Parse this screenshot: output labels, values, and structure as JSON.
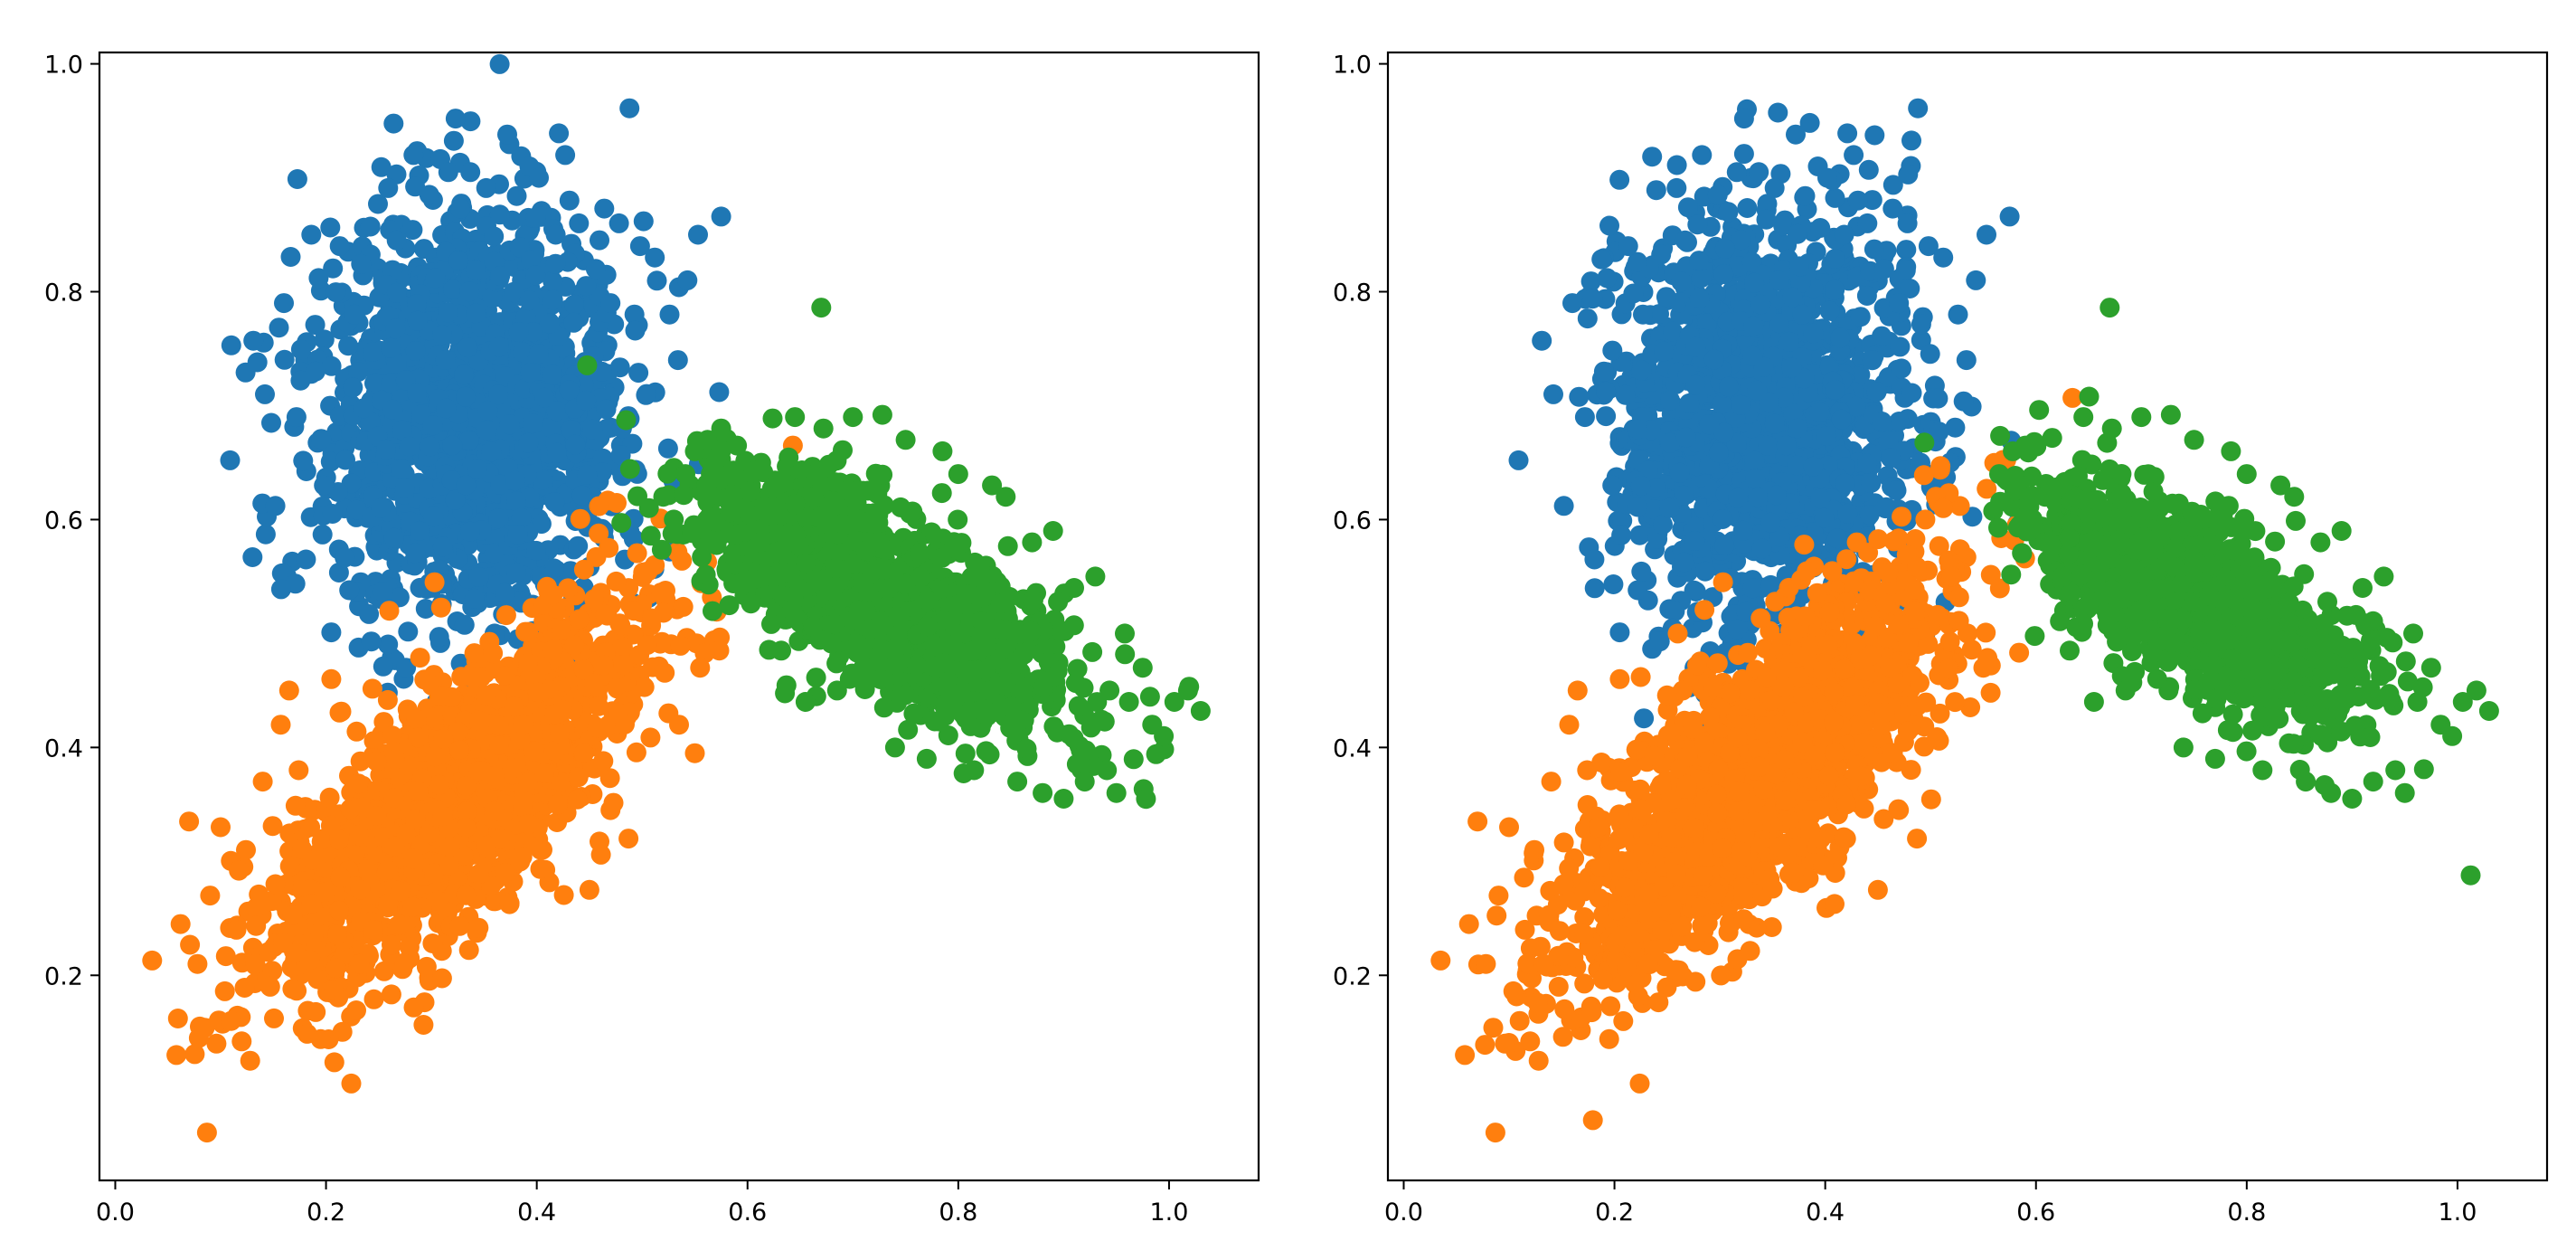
{
  "chart_data": [
    {
      "type": "scatter",
      "panel": "left",
      "title": "",
      "xlabel": "",
      "ylabel": "",
      "xlim": [
        -0.015,
        1.085
      ],
      "ylim": [
        0.02,
        1.01
      ],
      "x_ticks": [
        0.0,
        0.2,
        0.4,
        0.6,
        0.8,
        1.0
      ],
      "x_tick_labels": [
        "0.0",
        "0.2",
        "0.4",
        "0.6",
        "0.8",
        "1.0"
      ],
      "y_ticks": [
        0.2,
        0.4,
        0.6,
        0.8,
        1.0
      ],
      "y_tick_labels": [
        "0.2",
        "0.4",
        "0.6",
        "0.8",
        "1.0"
      ],
      "grid": false,
      "legend": "none",
      "series": [
        {
          "color": "#1f77b4",
          "cluster": {
            "mean": [
              0.34,
              0.69
            ],
            "sd": [
              0.07,
              0.085
            ],
            "corr": 0.0,
            "n": 1600
          },
          "x": [
            0.109,
            0.131,
            0.142,
            0.152,
            0.16,
            0.172,
            0.181,
            0.19,
            0.193,
            0.198,
            0.205,
            0.213,
            0.222,
            0.227,
            0.243,
            0.252,
            0.259,
            0.267,
            0.276,
            0.283,
            0.298,
            0.305,
            0.316,
            0.323,
            0.335,
            0.337,
            0.352,
            0.36,
            0.372,
            0.381,
            0.393,
            0.402,
            0.405,
            0.418,
            0.421,
            0.427,
            0.431,
            0.44,
            0.45,
            0.456,
            0.464,
            0.47,
            0.478,
            0.488,
            0.498,
            0.512,
            0.526,
            0.534,
            0.543,
            0.553,
            0.575
          ],
          "y": [
            0.652,
            0.757,
            0.71,
            0.612,
            0.79,
            0.69,
            0.565,
            0.73,
            0.812,
            0.63,
            0.501,
            0.84,
            0.538,
            0.78,
            0.493,
            0.61,
            0.891,
            0.845,
            0.47,
            0.92,
            0.885,
            0.44,
            0.905,
            0.952,
            0.45,
            0.905,
            0.891,
            0.5,
            0.938,
            0.884,
            0.91,
            0.9,
            0.43,
            0.85,
            0.939,
            0.92,
            0.88,
            0.86,
            0.45,
            0.82,
            0.873,
            0.79,
            0.86,
            0.961,
            0.84,
            0.83,
            0.78,
            0.74,
            0.81,
            0.85,
            0.866
          ]
        },
        {
          "color": "#ff7f0e",
          "cluster": {
            "mean": [
              0.33,
              0.36
            ],
            "sd": [
              0.09,
              0.085
            ],
            "corr": 0.78,
            "n": 1700
          },
          "x": [
            0.035,
            0.058,
            0.062,
            0.07,
            0.078,
            0.085,
            0.087,
            0.09,
            0.096,
            0.1,
            0.104,
            0.11,
            0.115,
            0.12,
            0.124,
            0.128,
            0.133,
            0.14,
            0.147,
            0.152,
            0.157,
            0.165,
            0.174,
            0.185,
            0.195,
            0.205,
            0.224,
            0.232,
            0.245,
            0.26,
            0.282,
            0.303,
            0.37,
            0.42,
            0.45,
            0.47,
            0.487,
            0.492,
            0.505,
            0.512,
            0.525,
            0.535,
            0.55,
            0.555,
            0.643
          ],
          "y": [
            0.213,
            0.13,
            0.245,
            0.335,
            0.21,
            0.154,
            0.062,
            0.27,
            0.14,
            0.33,
            0.186,
            0.16,
            0.24,
            0.142,
            0.31,
            0.125,
            0.21,
            0.37,
            0.19,
            0.28,
            0.42,
            0.45,
            0.38,
            0.33,
            0.144,
            0.46,
            0.105,
            0.21,
            0.24,
            0.52,
            0.26,
            0.545,
            0.29,
            0.35,
            0.275,
            0.345,
            0.32,
            0.52,
            0.49,
            0.56,
            0.43,
            0.42,
            0.395,
            0.47,
            0.665
          ]
        },
        {
          "color": "#2ca02c",
          "cluster": {
            "mean": [
              0.73,
              0.53
            ],
            "sd": [
              0.085,
              0.055
            ],
            "corr": -0.72,
            "n": 1500
          },
          "x": [
            0.52,
            0.53,
            0.541,
            0.55,
            0.562,
            0.575,
            0.59,
            0.612,
            0.625,
            0.632,
            0.645,
            0.655,
            0.67,
            0.672,
            0.685,
            0.7,
            0.712,
            0.728,
            0.74,
            0.75,
            0.758,
            0.77,
            0.785,
            0.8,
            0.815,
            0.832,
            0.845,
            0.856,
            0.87,
            0.88,
            0.89,
            0.9,
            0.91,
            0.92,
            0.93,
            0.941,
            0.95,
            0.958,
            0.962,
            0.975,
            0.984,
            0.995,
            1.005,
            1.018,
            1.03
          ],
          "y": [
            0.62,
            0.6,
            0.64,
            0.66,
            0.67,
            0.68,
            0.665,
            0.58,
            0.55,
            0.485,
            0.69,
            0.44,
            0.786,
            0.68,
            0.45,
            0.69,
            0.52,
            0.692,
            0.4,
            0.67,
            0.43,
            0.39,
            0.66,
            0.64,
            0.38,
            0.63,
            0.62,
            0.37,
            0.58,
            0.36,
            0.59,
            0.355,
            0.54,
            0.37,
            0.55,
            0.38,
            0.36,
            0.5,
            0.44,
            0.47,
            0.42,
            0.41,
            0.44,
            0.45,
            0.432
          ]
        }
      ]
    },
    {
      "type": "scatter",
      "panel": "right",
      "title": "",
      "xlabel": "",
      "ylabel": "",
      "xlim": [
        -0.015,
        1.085
      ],
      "ylim": [
        0.02,
        1.01
      ],
      "x_ticks": [
        0.0,
        0.2,
        0.4,
        0.6,
        0.8,
        1.0
      ],
      "x_tick_labels": [
        "0.0",
        "0.2",
        "0.4",
        "0.6",
        "0.8",
        "1.0"
      ],
      "y_ticks": [
        0.2,
        0.4,
        0.6,
        0.8,
        1.0
      ],
      "y_tick_labels": [
        "0.2",
        "0.4",
        "0.6",
        "0.8",
        "1.0"
      ],
      "grid": false,
      "legend": "none",
      "series": [
        {
          "color": "#1f77b4",
          "cluster": {
            "mean": [
              0.34,
              0.69
            ],
            "sd": [
              0.07,
              0.085
            ],
            "corr": 0.0,
            "n": 1600
          },
          "x": [
            0.109,
            0.131,
            0.142,
            0.152,
            0.16,
            0.172,
            0.181,
            0.19,
            0.193,
            0.198,
            0.205,
            0.213,
            0.222,
            0.227,
            0.243,
            0.252,
            0.259,
            0.267,
            0.276,
            0.283,
            0.298,
            0.305,
            0.316,
            0.323,
            0.335,
            0.337,
            0.352,
            0.36,
            0.372,
            0.381,
            0.393,
            0.402,
            0.405,
            0.418,
            0.421,
            0.427,
            0.431,
            0.44,
            0.45,
            0.456,
            0.464,
            0.47,
            0.478,
            0.488,
            0.498,
            0.512,
            0.526,
            0.534,
            0.543,
            0.553,
            0.575
          ],
          "y": [
            0.652,
            0.757,
            0.71,
            0.612,
            0.79,
            0.69,
            0.565,
            0.73,
            0.812,
            0.63,
            0.501,
            0.84,
            0.538,
            0.78,
            0.493,
            0.61,
            0.891,
            0.845,
            0.47,
            0.92,
            0.885,
            0.44,
            0.905,
            0.952,
            0.45,
            0.905,
            0.891,
            0.5,
            0.938,
            0.884,
            0.91,
            0.9,
            0.43,
            0.85,
            0.939,
            0.92,
            0.88,
            0.86,
            0.45,
            0.82,
            0.873,
            0.79,
            0.86,
            0.961,
            0.84,
            0.83,
            0.78,
            0.74,
            0.81,
            0.85,
            0.866
          ]
        },
        {
          "color": "#ff7f0e",
          "cluster": {
            "mean": [
              0.33,
              0.37
            ],
            "sd": [
              0.09,
              0.09
            ],
            "corr": 0.78,
            "n": 1700
          },
          "x": [
            0.035,
            0.058,
            0.062,
            0.07,
            0.078,
            0.085,
            0.087,
            0.09,
            0.096,
            0.1,
            0.104,
            0.11,
            0.115,
            0.12,
            0.124,
            0.128,
            0.133,
            0.14,
            0.147,
            0.152,
            0.157,
            0.165,
            0.174,
            0.185,
            0.195,
            0.205,
            0.224,
            0.232,
            0.245,
            0.26,
            0.282,
            0.303,
            0.37,
            0.38,
            0.42,
            0.43,
            0.45,
            0.47,
            0.487,
            0.495,
            0.505,
            0.512,
            0.52,
            0.535,
            0.55
          ],
          "y": [
            0.213,
            0.13,
            0.245,
            0.335,
            0.21,
            0.154,
            0.062,
            0.27,
            0.14,
            0.33,
            0.186,
            0.16,
            0.24,
            0.142,
            0.31,
            0.125,
            0.21,
            0.37,
            0.19,
            0.28,
            0.42,
            0.45,
            0.38,
            0.33,
            0.144,
            0.46,
            0.105,
            0.21,
            0.24,
            0.5,
            0.26,
            0.545,
            0.29,
            0.578,
            0.35,
            0.58,
            0.275,
            0.345,
            0.32,
            0.6,
            0.62,
            0.61,
            0.55,
            0.5,
            0.47
          ]
        },
        {
          "color": "#2ca02c",
          "cluster": {
            "mean": [
              0.75,
              0.53
            ],
            "sd": [
              0.075,
              0.05
            ],
            "corr": -0.72,
            "n": 1400
          },
          "x": [
            0.565,
            0.578,
            0.59,
            0.612,
            0.625,
            0.632,
            0.645,
            0.655,
            0.67,
            0.672,
            0.685,
            0.7,
            0.712,
            0.728,
            0.74,
            0.75,
            0.758,
            0.77,
            0.785,
            0.8,
            0.815,
            0.832,
            0.845,
            0.856,
            0.87,
            0.88,
            0.89,
            0.9,
            0.91,
            0.92,
            0.93,
            0.941,
            0.95,
            0.958,
            0.962,
            0.975,
            0.984,
            0.995,
            1.005,
            1.018,
            1.03
          ],
          "y": [
            0.64,
            0.66,
            0.665,
            0.58,
            0.55,
            0.485,
            0.69,
            0.44,
            0.786,
            0.68,
            0.45,
            0.69,
            0.52,
            0.692,
            0.4,
            0.67,
            0.43,
            0.39,
            0.66,
            0.64,
            0.38,
            0.63,
            0.62,
            0.37,
            0.58,
            0.36,
            0.59,
            0.355,
            0.54,
            0.37,
            0.55,
            0.38,
            0.36,
            0.5,
            0.44,
            0.47,
            0.42,
            0.41,
            0.44,
            0.45,
            0.432
          ]
        }
      ]
    }
  ]
}
